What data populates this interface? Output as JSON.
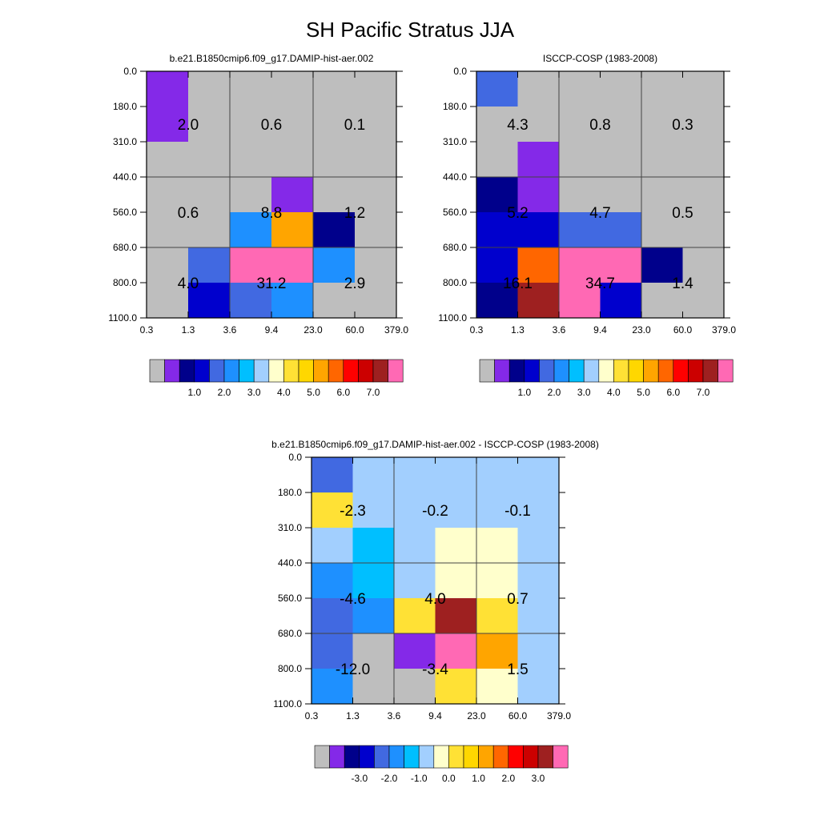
{
  "figure": {
    "title": "SH Pacific Stratus JJA"
  },
  "colors": {
    "palette_absolute": [
      "#bebebe",
      "#8429e8",
      "#00008b",
      "#0000cd",
      "#4169e1",
      "#1e90ff",
      "#00bfff",
      "#a2cffe",
      "#ffffcc",
      "#ffe135",
      "#ffd700",
      "#ffa500",
      "#ff6600",
      "#ff0000",
      "#cc0000",
      "#9e2020",
      "#ff69b4"
    ],
    "palette_difference": [
      "#bebebe",
      "#8429e8",
      "#00008b",
      "#0000cd",
      "#4169e1",
      "#1e90ff",
      "#00bfff",
      "#a2cffe",
      "#ffffcc",
      "#ffe135",
      "#ffd700",
      "#ffa500",
      "#ff6600",
      "#ff0000",
      "#cc0000",
      "#9e2020",
      "#ff69b4"
    ],
    "grid_line": "#444444"
  },
  "chart_data": [
    {
      "type": "heatmap",
      "title": "b.e21.B1850cmip6.f09_g17.DAMIP-hist-aer.002",
      "x_ticks": [
        "0.3",
        "1.3",
        "3.6",
        "9.4",
        "23.0",
        "60.0",
        "379.0"
      ],
      "y_ticks": [
        "0.0",
        "180.0",
        "310.0",
        "440.0",
        "560.0",
        "680.0",
        "800.0",
        "1100.0"
      ],
      "cell_color_index": [
        [
          1,
          0,
          0,
          0,
          0,
          0
        ],
        [
          1,
          0,
          0,
          0,
          0,
          0
        ],
        [
          0,
          0,
          0,
          0,
          0,
          0
        ],
        [
          0,
          0,
          0,
          1,
          0,
          0
        ],
        [
          0,
          0,
          5,
          11,
          2,
          0
        ],
        [
          0,
          4,
          16,
          16,
          5,
          0
        ],
        [
          0,
          3,
          4,
          5,
          0,
          0
        ]
      ],
      "group_labels": [
        [
          "2.0",
          "0.6",
          "0.1"
        ],
        [
          "0.6",
          "8.8",
          "1.2"
        ],
        [
          "4.0",
          "31.2",
          "2.9"
        ]
      ],
      "colorbar_labels": [
        "1.0",
        "2.0",
        "3.0",
        "4.0",
        "5.0",
        "6.0",
        "7.0"
      ]
    },
    {
      "type": "heatmap",
      "title": "ISCCP-COSP (1983-2008)",
      "x_ticks": [
        "0.3",
        "1.3",
        "3.6",
        "9.4",
        "23.0",
        "60.0",
        "379.0"
      ],
      "y_ticks": [
        "0.0",
        "180.0",
        "310.0",
        "440.0",
        "560.0",
        "680.0",
        "800.0",
        "1100.0"
      ],
      "cell_color_index": [
        [
          4,
          0,
          0,
          0,
          0,
          0
        ],
        [
          0,
          0,
          0,
          0,
          0,
          0
        ],
        [
          0,
          1,
          0,
          0,
          0,
          0
        ],
        [
          2,
          1,
          0,
          0,
          0,
          0
        ],
        [
          3,
          3,
          4,
          4,
          0,
          0
        ],
        [
          3,
          12,
          16,
          16,
          2,
          0
        ],
        [
          2,
          15,
          16,
          3,
          0,
          0
        ]
      ],
      "group_labels": [
        [
          "4.3",
          "0.8",
          "0.3"
        ],
        [
          "5.2",
          "4.7",
          "0.5"
        ],
        [
          "16.1",
          "34.7",
          "1.4"
        ]
      ],
      "colorbar_labels": [
        "1.0",
        "2.0",
        "3.0",
        "4.0",
        "5.0",
        "6.0",
        "7.0"
      ]
    },
    {
      "type": "heatmap",
      "title": "b.e21.B1850cmip6.f09_g17.DAMIP-hist-aer.002 - ISCCP-COSP (1983-2008)",
      "x_ticks": [
        "0.3",
        "1.3",
        "3.6",
        "9.4",
        "23.0",
        "60.0",
        "379.0"
      ],
      "y_ticks": [
        "0.0",
        "180.0",
        "310.0",
        "440.0",
        "560.0",
        "680.0",
        "800.0",
        "1100.0"
      ],
      "cell_color_index": [
        [
          4,
          7,
          7,
          7,
          7,
          7
        ],
        [
          9,
          7,
          7,
          7,
          7,
          7
        ],
        [
          7,
          6,
          7,
          8,
          8,
          7
        ],
        [
          5,
          6,
          7,
          8,
          8,
          7
        ],
        [
          4,
          5,
          9,
          15,
          9,
          7
        ],
        [
          4,
          0,
          1,
          16,
          11,
          7
        ],
        [
          5,
          0,
          0,
          9,
          8,
          7
        ]
      ],
      "group_labels": [
        [
          "-2.3",
          "-0.2",
          "-0.1"
        ],
        [
          "-4.6",
          "4.0",
          "0.7"
        ],
        [
          "-12.0",
          "-3.4",
          "1.5"
        ]
      ],
      "colorbar_labels": [
        "-3.0",
        "-2.0",
        "-1.0",
        "0.0",
        "1.0",
        "2.0",
        "3.0"
      ]
    }
  ]
}
